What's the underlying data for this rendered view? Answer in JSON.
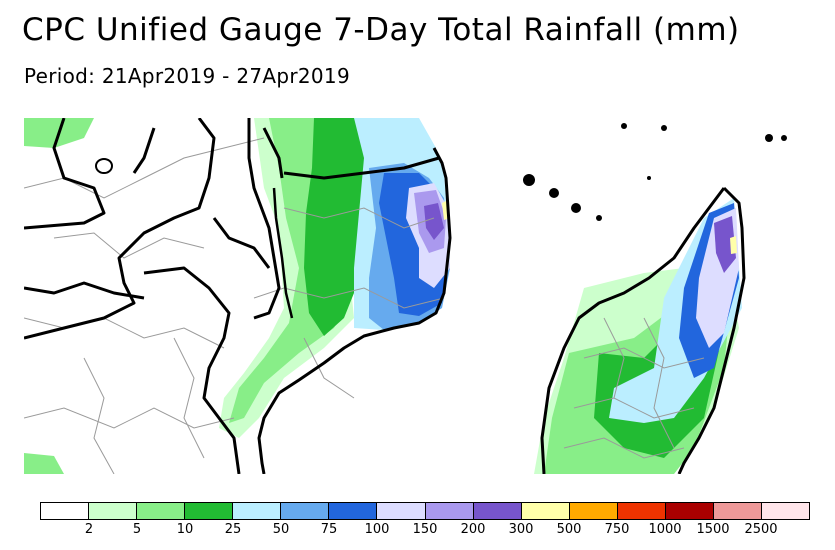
{
  "title": "CPC Unified Gauge 7-Day Total Rainfall (mm)",
  "period": "Period: 21Apr2019 - 27Apr2019",
  "legend": {
    "colors": [
      "#ffffff",
      "#ccffcc",
      "#88ee88",
      "#22bb33",
      "#bbeeff",
      "#66aaee",
      "#2266dd",
      "#ddddff",
      "#aa99ee",
      "#7755cc",
      "#ffffaa",
      "#ffaa00",
      "#ee3300",
      "#aa0000",
      "#ee9999",
      "#ffe5ea"
    ],
    "labels": [
      "2",
      "5",
      "10",
      "25",
      "50",
      "75",
      "100",
      "150",
      "200",
      "300",
      "500",
      "750",
      "1000",
      "1500",
      "2500"
    ]
  },
  "map_colors": {
    "ocean": "#ffffff",
    "land": "#ffffff",
    "border": "#000000",
    "admin": "#9a9a9a"
  }
}
